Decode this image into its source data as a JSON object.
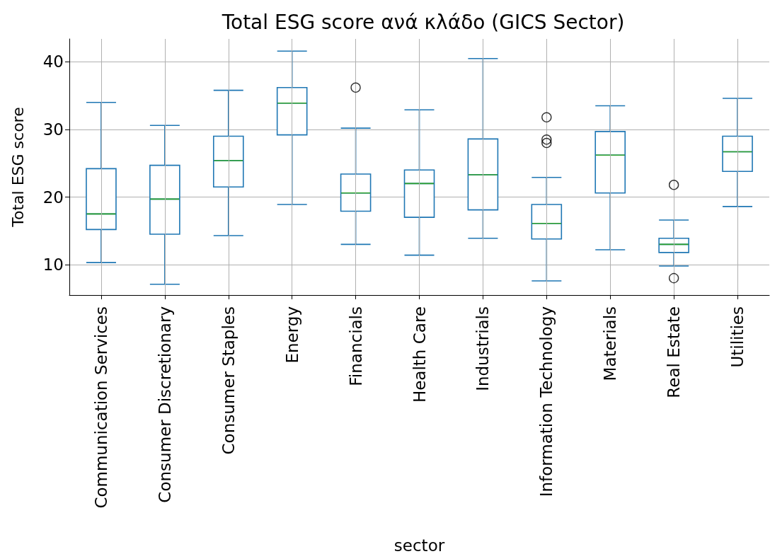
{
  "chart_data": {
    "type": "box",
    "title": "Total ESG score ανά κλάδο (GICS Sector)",
    "xlabel": "sector",
    "ylabel": "Total ESG score",
    "categories": [
      "Communication Services",
      "Consumer Discretionary",
      "Consumer Staples",
      "Energy",
      "Financials",
      "Health Care",
      "Industrials",
      "Information Technology",
      "Materials",
      "Real Estate",
      "Utilities"
    ],
    "series": [
      {
        "color": "#1f77b4",
        "boxes": [
          {
            "low": 10.3,
            "q1": 15.2,
            "median": 17.5,
            "q3": 24.2,
            "high": 34.0
          },
          {
            "low": 7.1,
            "q1": 14.5,
            "median": 19.7,
            "q3": 24.7,
            "high": 30.6
          },
          {
            "low": 14.3,
            "q1": 21.5,
            "median": 25.4,
            "q3": 29.0,
            "high": 35.8
          },
          {
            "low": 18.9,
            "q1": 29.2,
            "median": 33.9,
            "q3": 36.2,
            "high": 41.6
          },
          {
            "low": 13.0,
            "q1": 17.9,
            "median": 20.6,
            "q3": 23.4,
            "high": 30.2,
            "outliers": [
              36.2
            ]
          },
          {
            "low": 11.4,
            "q1": 17.0,
            "median": 22.0,
            "q3": 24.0,
            "high": 32.9
          },
          {
            "low": 13.9,
            "q1": 18.1,
            "median": 23.3,
            "q3": 28.6,
            "high": 40.5
          },
          {
            "low": 7.6,
            "q1": 13.8,
            "median": 16.1,
            "q3": 18.9,
            "high": 22.9,
            "outliers": [
              31.8,
              28.5,
              28.0
            ]
          },
          {
            "low": 12.2,
            "q1": 20.6,
            "median": 26.2,
            "q3": 29.7,
            "high": 33.5
          },
          {
            "low": 9.8,
            "q1": 11.8,
            "median": 13.0,
            "q3": 13.9,
            "high": 16.6,
            "outliers": [
              21.8,
              8.0
            ]
          },
          {
            "low": 18.6,
            "q1": 23.8,
            "median": 26.7,
            "q3": 29.0,
            "high": 34.6
          }
        ]
      }
    ],
    "ylim": [
      5.5,
      43.4
    ],
    "yticks": [
      10,
      20,
      30,
      40
    ],
    "grid": true
  }
}
